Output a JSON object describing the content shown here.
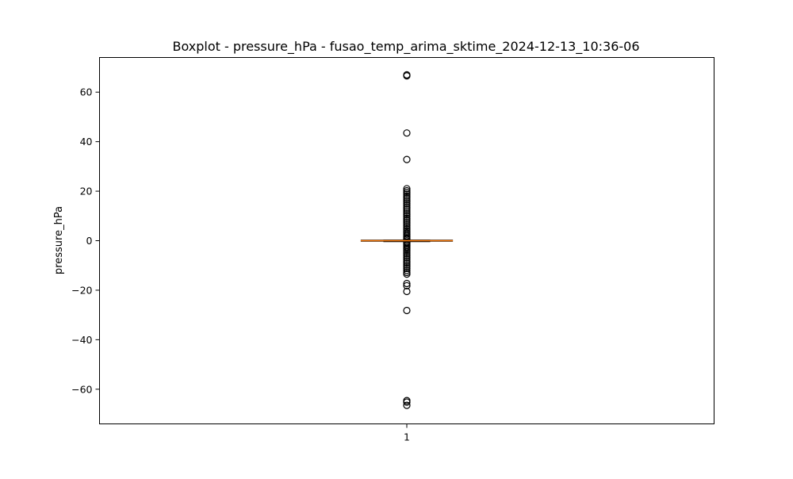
{
  "chart_data": {
    "type": "boxplot",
    "title": "Boxplot - pressure_hPa - fusao_temp_arima_sktime_2024-12-13_10:36-06",
    "xlabel": "",
    "ylabel": "pressure_hPa",
    "ylim": [
      -74,
      74
    ],
    "categories": [
      "1"
    ],
    "yticks": [
      -60,
      -40,
      -20,
      0,
      20,
      40,
      60
    ],
    "ytick_labels": [
      "−60",
      "−40",
      "−20",
      "0",
      "20",
      "40",
      "60"
    ],
    "grid": false,
    "colors": {
      "box": "#000000",
      "median": "#ff7f0e",
      "outlier": "#000000"
    },
    "boxes": [
      {
        "category": "1",
        "whisker_low": -0.25,
        "q1": -0.08,
        "median": 0.0,
        "q3": 0.08,
        "whisker_high": 0.25,
        "outliers": [
          67.0,
          66.6,
          43.5,
          32.8,
          21.0,
          20.2,
          19.5,
          18.8,
          18.0,
          17.3,
          16.5,
          15.8,
          15.0,
          14.3,
          13.5,
          12.8,
          12.0,
          11.2,
          10.5,
          9.8,
          9.0,
          8.3,
          7.5,
          6.8,
          6.0,
          5.3,
          4.6,
          3.9,
          3.2,
          2.6,
          2.0,
          1.5,
          1.0,
          0.6,
          -0.6,
          -1.0,
          -1.5,
          -2.0,
          -2.6,
          -3.2,
          -3.9,
          -4.6,
          -5.3,
          -6.0,
          -6.8,
          -7.5,
          -8.3,
          -9.0,
          -9.8,
          -10.5,
          -11.2,
          -12.0,
          -12.8,
          -13.5,
          -17.3,
          -18.2,
          -20.5,
          -28.2,
          -64.6,
          -65.2,
          -66.5
        ]
      }
    ]
  }
}
